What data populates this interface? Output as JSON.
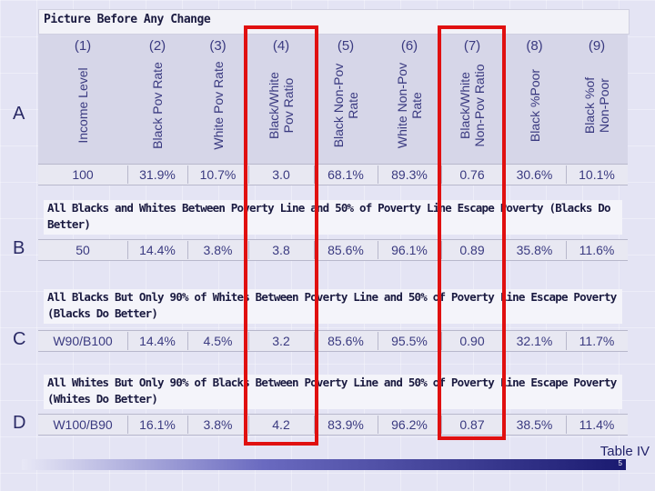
{
  "title": "Picture Before Any Change",
  "table_label": "Table IV",
  "page_number": "5",
  "column_numbers": [
    "(1)",
    "(2)",
    "(3)",
    "(4)",
    "(5)",
    "(6)",
    "(7)",
    "(8)",
    "(9)"
  ],
  "column_headers": [
    [
      "Income Level"
    ],
    [
      "Black Pov Rate"
    ],
    [
      "White Pov Rate"
    ],
    [
      "Black/White",
      "Pov Ratio"
    ],
    [
      "Black Non-Pov",
      "Rate"
    ],
    [
      "White Non-Pov",
      "Rate"
    ],
    [
      "Black/White",
      "Non-Pov Ratio"
    ],
    [
      "Black %Poor"
    ],
    [
      "Black %of",
      "Non-Poor"
    ]
  ],
  "sections": [
    {
      "label": "A",
      "description": "",
      "row": [
        "100",
        "31.9%",
        "10.7%",
        "3.0",
        "68.1%",
        "89.3%",
        "0.76",
        "30.6%",
        "10.1%"
      ]
    },
    {
      "label": "B",
      "description": "All Blacks and Whites Between Poverty Line and 50% of Poverty Line Escape Poverty (Blacks Do Better)",
      "row": [
        "50",
        "14.4%",
        "3.8%",
        "3.8",
        "85.6%",
        "96.1%",
        "0.89",
        "35.8%",
        "11.6%"
      ]
    },
    {
      "label": "C",
      "description": "All Blacks But Only 90% of Whites Between Poverty Line and 50% of Poverty Line Escape Poverty (Blacks Do Better)",
      "row": [
        "W90/B100",
        "14.4%",
        "4.5%",
        "3.2",
        "85.6%",
        "95.5%",
        "0.90",
        "32.1%",
        "11.7%"
      ]
    },
    {
      "label": "D",
      "description": "All Whites But Only 90% of Blacks Between Poverty Line and 50% of Poverty Line Escape Poverty (Whites Do Better)",
      "row": [
        "W100/B90",
        "16.1%",
        "3.8%",
        "4.2",
        "83.9%",
        "96.2%",
        "0.87",
        "38.5%",
        "11.4%"
      ]
    }
  ],
  "highlight_color": "#e01010"
}
